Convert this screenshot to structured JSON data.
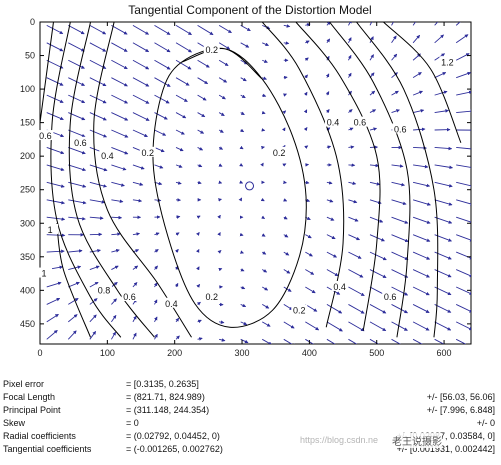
{
  "chart_data": {
    "type": "quiver-contour",
    "title": "Tangential Component of the Distortion Model",
    "xlabel": "",
    "ylabel": "",
    "xlim": [
      0,
      640
    ],
    "ylim": [
      0,
      480
    ],
    "x_ticks": [
      0,
      100,
      200,
      300,
      400,
      500,
      600
    ],
    "y_ticks": [
      0,
      50,
      100,
      150,
      200,
      250,
      300,
      350,
      400,
      450
    ],
    "y_reversed": true,
    "grid": false,
    "principal_point": [
      311.148,
      244.354
    ],
    "contours": [
      {
        "label": "0.2",
        "points": [
          [
            210,
            60
          ],
          [
            275,
            40
          ],
          [
            330,
            85
          ],
          [
            375,
            170
          ],
          [
            395,
            260
          ],
          [
            385,
            350
          ],
          [
            345,
            430
          ],
          [
            282,
            455
          ],
          [
            230,
            420
          ],
          [
            190,
            320
          ],
          [
            168,
            210
          ],
          [
            180,
            110
          ]
        ]
      },
      {
        "label": "0.4",
        "points": [
          [
            110,
            0
          ],
          [
            80,
            150
          ],
          [
            100,
            280
          ],
          [
            175,
            390
          ],
          [
            225,
            470
          ]
        ]
      },
      {
        "label": "0.4",
        "points": [
          [
            330,
            0
          ],
          [
            385,
            70
          ],
          [
            440,
            200
          ],
          [
            450,
            330
          ],
          [
            425,
            455
          ]
        ]
      },
      {
        "label": "0.6",
        "points": [
          [
            75,
            0
          ],
          [
            45,
            150
          ],
          [
            55,
            290
          ],
          [
            115,
            400
          ],
          [
            170,
            470
          ]
        ]
      },
      {
        "label": "0.6",
        "points": [
          [
            380,
            0
          ],
          [
            445,
            80
          ],
          [
            500,
            200
          ],
          [
            500,
            330
          ],
          [
            480,
            460
          ]
        ]
      },
      {
        "label": "0.8",
        "points": [
          [
            45,
            0
          ],
          [
            18,
            150
          ],
          [
            25,
            295
          ],
          [
            75,
            410
          ],
          [
            120,
            470
          ]
        ]
      },
      {
        "label": "0.8",
        "points": [
          [
            430,
            0
          ],
          [
            495,
            90
          ],
          [
            545,
            220
          ],
          [
            545,
            360
          ],
          [
            530,
            470
          ]
        ]
      },
      {
        "label": "1",
        "points": [
          [
            20,
            0
          ],
          [
            0,
            150
          ]
        ]
      },
      {
        "label": "1",
        "points": [
          [
            25,
            300
          ],
          [
            35,
            370
          ],
          [
            75,
            470
          ]
        ]
      },
      {
        "label": "1",
        "points": [
          [
            470,
            0
          ],
          [
            540,
            100
          ],
          [
            585,
            250
          ],
          [
            590,
            400
          ],
          [
            585,
            470
          ]
        ]
      },
      {
        "label": "1.2",
        "points": [
          [
            510,
            0
          ],
          [
            580,
            70
          ],
          [
            625,
            180
          ]
        ]
      }
    ],
    "contour_labels": [
      {
        "text": "0.2",
        "x": 255,
        "y": 42
      },
      {
        "text": "0.2",
        "x": 160,
        "y": 195
      },
      {
        "text": "0.2",
        "x": 355,
        "y": 195
      },
      {
        "text": "0.2",
        "x": 255,
        "y": 410
      },
      {
        "text": "0.2",
        "x": 385,
        "y": 430
      },
      {
        "text": "0.4",
        "x": 100,
        "y": 200
      },
      {
        "text": "0.4",
        "x": 435,
        "y": 150
      },
      {
        "text": "0.4",
        "x": 195,
        "y": 420
      },
      {
        "text": "0.4",
        "x": 445,
        "y": 395
      },
      {
        "text": "0.6",
        "x": 60,
        "y": 180
      },
      {
        "text": "0.6",
        "x": 475,
        "y": 150
      },
      {
        "text": "0.6",
        "x": 133,
        "y": 410
      },
      {
        "text": "0.6",
        "x": 520,
        "y": 410
      },
      {
        "text": "0.6",
        "x": 8,
        "y": 170
      },
      {
        "text": "0.6",
        "x": 535,
        "y": 160
      },
      {
        "text": "0.8",
        "x": 95,
        "y": 400
      },
      {
        "text": "1",
        "x": 15,
        "y": 310
      },
      {
        "text": "1",
        "x": 6,
        "y": 375
      },
      {
        "text": "1.2",
        "x": 605,
        "y": 60
      }
    ]
  },
  "calibration": {
    "rows": [
      {
        "name": "Pixel error",
        "value": "= [0.3135, 0.2635]",
        "error": ""
      },
      {
        "name": "Focal Length",
        "value": "= (821.71, 824.989)",
        "error": "+/- [56.03, 56.06]"
      },
      {
        "name": "Principal Point",
        "value": "= (311.148, 244.354)",
        "error": "+/- [7.996, 6.848]"
      },
      {
        "name": "Skew",
        "value": "= 0",
        "error": "+/- 0"
      },
      {
        "name": "Radial coefficients",
        "value": "= (0.02792, 0.04452, 0)",
        "error": "+/- [0.02987, 0.03584, 0]"
      },
      {
        "name": "Tangential coefficients",
        "value": "= (-0.001265, 0.002762)",
        "error": "+/- [0.001931, 0.002442]"
      }
    ]
  },
  "watermark": {
    "url": "https://blog.csdn.ne",
    "brand": "老王说摄影"
  }
}
